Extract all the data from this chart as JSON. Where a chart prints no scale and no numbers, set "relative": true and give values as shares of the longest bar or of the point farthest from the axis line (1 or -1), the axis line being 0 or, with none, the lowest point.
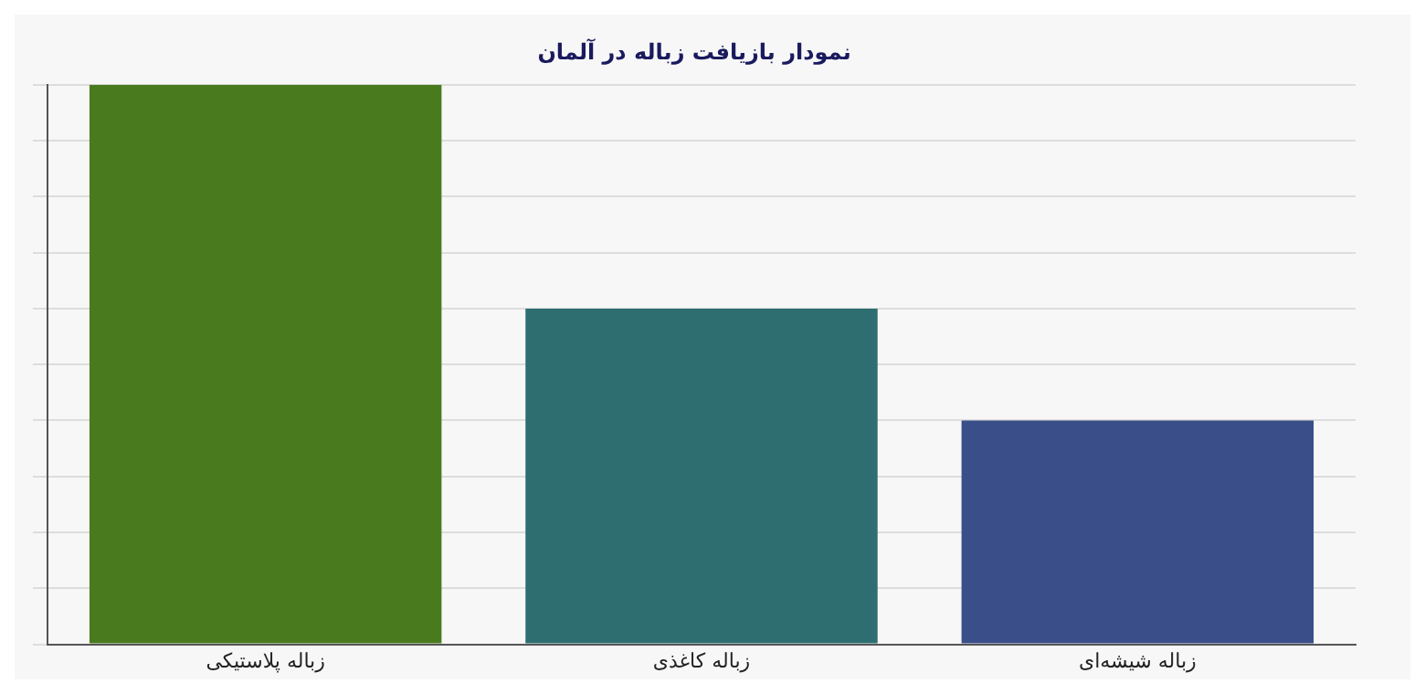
{
  "chart_data": {
    "type": "bar",
    "title": "نمودار بازیافت زباله در آلمان",
    "categories": [
      "زباله پلاستیکی",
      "زباله کاغذی",
      "زباله شیشه‌ای"
    ],
    "values": [
      1,
      0.6,
      0.4
    ],
    "colors": [
      "#4a7a1e",
      "#2e6e70",
      "#3a4e8a"
    ],
    "relative": true,
    "grid": "y"
  }
}
